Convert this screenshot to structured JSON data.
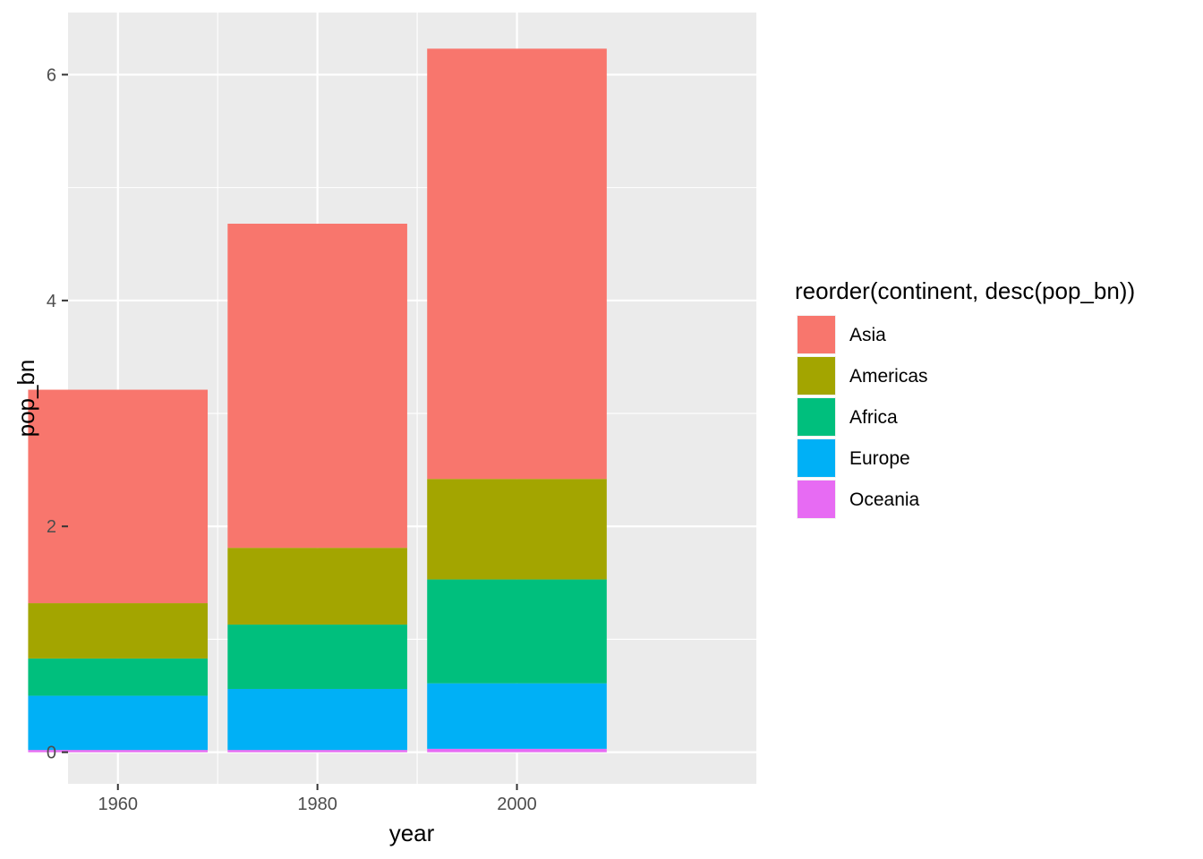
{
  "chart_data": {
    "type": "bar",
    "stacked": true,
    "x": [
      1960,
      1980,
      2000
    ],
    "xlabel": "year",
    "ylabel": "pop_bn",
    "ylim": [
      -0.28,
      6.55
    ],
    "xlim": [
      1955,
      2024
    ],
    "bar_width": 18,
    "x_ticks": [
      1960,
      1980,
      2000
    ],
    "y_ticks": [
      0,
      2,
      4,
      6
    ],
    "x_tick_labels": [
      "1960",
      "1980",
      "2000"
    ],
    "y_tick_labels": [
      "0",
      "2",
      "4",
      "6"
    ],
    "grid": true,
    "legend": {
      "title": "reorder(continent, desc(pop_bn))",
      "position": "right"
    },
    "series": [
      {
        "name": "Asia",
        "color": "#F8766D",
        "values": [
          1.89,
          2.87,
          3.81
        ]
      },
      {
        "name": "Americas",
        "color": "#A3A500",
        "values": [
          0.49,
          0.68,
          0.89
        ]
      },
      {
        "name": "Africa",
        "color": "#00BF7D",
        "values": [
          0.33,
          0.57,
          0.92
        ]
      },
      {
        "name": "Europe",
        "color": "#00B0F6",
        "values": [
          0.48,
          0.54,
          0.58
        ]
      },
      {
        "name": "Oceania",
        "color": "#E76BF3",
        "values": [
          0.02,
          0.02,
          0.03
        ]
      }
    ],
    "stack_order": [
      "Oceania",
      "Europe",
      "Africa",
      "Americas",
      "Asia"
    ]
  }
}
